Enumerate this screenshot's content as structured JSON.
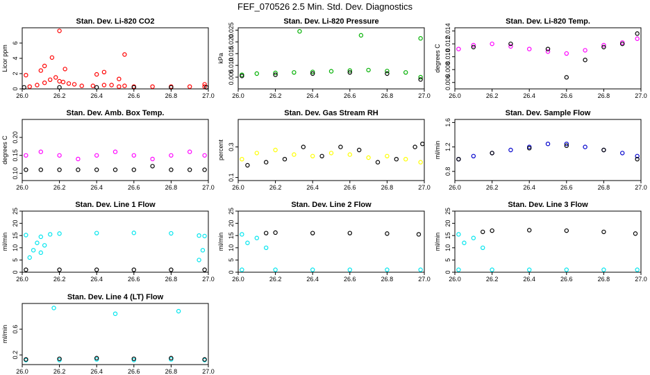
{
  "figure": {
    "title": "FEF_070526  2.5 Min. Std. Dev. Diagnostics"
  },
  "chart_data": [
    {
      "id": "li820-co2",
      "type": "scatter",
      "title": "Stan. Dev. Li-820 CO2",
      "ylabel": "Licor ppm",
      "xlim": [
        26.0,
        27.0
      ],
      "ylim": [
        0,
        8
      ],
      "x_ticks": [
        "26.0",
        "26.2",
        "26.4",
        "26.6",
        "26.8",
        "27.0"
      ],
      "y_ticks": [
        "0",
        "2",
        "4",
        "6"
      ],
      "series": [
        {
          "name": "dense",
          "color": "#ff0000",
          "x": [
            26.04,
            26.08,
            26.12,
            26.15,
            26.18,
            26.2,
            26.22,
            26.25,
            26.28,
            26.32,
            26.38,
            26.44,
            26.48,
            26.52,
            26.55,
            26.6,
            26.7,
            26.8,
            26.9,
            26.98
          ],
          "y": [
            0.3,
            0.5,
            0.8,
            1.2,
            1.5,
            1.0,
            0.9,
            0.7,
            0.6,
            0.4,
            0.4,
            0.5,
            0.5,
            0.3,
            0.4,
            0.3,
            0.3,
            0.3,
            0.3,
            0.3
          ]
        },
        {
          "name": "outliers",
          "color": "#ff0000",
          "x": [
            26.02,
            26.1,
            26.12,
            26.16,
            26.2,
            26.23,
            26.4,
            26.44,
            26.52,
            26.55,
            26.98
          ],
          "y": [
            1.8,
            2.4,
            3.0,
            4.1,
            7.6,
            2.6,
            1.9,
            2.2,
            1.3,
            4.5,
            0.6
          ]
        },
        {
          "name": "reference",
          "color": "#000000",
          "x": [
            26.01,
            26.2,
            26.4,
            26.6,
            26.8,
            26.99
          ],
          "y": [
            0.2,
            0.2,
            0.2,
            0.2,
            0.2,
            0.2
          ]
        }
      ]
    },
    {
      "id": "li820-pressure",
      "type": "scatter",
      "title": "Stan. Dev. Li-820 Pressure",
      "ylabel": "kPa",
      "xlim": [
        26.0,
        27.0
      ],
      "ylim": [
        0.0,
        0.026
      ],
      "x_ticks": [
        "26.0",
        "26.2",
        "26.4",
        "26.6",
        "26.8",
        "27.0"
      ],
      "y_ticks": [
        "0.005",
        "0.010",
        "0.015",
        "0.020",
        "0.025"
      ],
      "series": [
        {
          "name": "primary",
          "color": "#00b000",
          "x": [
            26.02,
            26.1,
            26.2,
            26.3,
            26.4,
            26.5,
            26.6,
            26.7,
            26.8,
            26.9,
            26.98
          ],
          "y": [
            0.006,
            0.0065,
            0.0068,
            0.007,
            0.0072,
            0.0075,
            0.0078,
            0.008,
            0.0076,
            0.007,
            0.005
          ]
        },
        {
          "name": "outliers",
          "color": "#00b000",
          "x": [
            26.33,
            26.66,
            26.98
          ],
          "y": [
            0.0245,
            0.0228,
            0.0215
          ]
        },
        {
          "name": "reference",
          "color": "#000000",
          "x": [
            26.02,
            26.2,
            26.4,
            26.6,
            26.8,
            26.98
          ],
          "y": [
            0.0055,
            0.006,
            0.0065,
            0.007,
            0.0065,
            0.004
          ]
        }
      ]
    },
    {
      "id": "li820-temp",
      "type": "scatter",
      "title": "Stan. Dev. Li-820 Temp.",
      "ylabel": "degrees C",
      "xlim": [
        26.0,
        27.0
      ],
      "ylim": [
        0.005,
        0.0145
      ],
      "x_ticks": [
        "26.0",
        "26.2",
        "26.4",
        "26.6",
        "26.8",
        "27.0"
      ],
      "y_ticks": [
        "0.006",
        "0.008",
        "0.010",
        "0.012",
        "0.014"
      ],
      "series": [
        {
          "name": "primary",
          "color": "#ff00ff",
          "x": [
            26.02,
            26.1,
            26.2,
            26.3,
            26.4,
            26.5,
            26.6,
            26.7,
            26.8,
            26.9,
            26.98
          ],
          "y": [
            0.0112,
            0.0118,
            0.012,
            0.0116,
            0.0112,
            0.0108,
            0.0105,
            0.011,
            0.0118,
            0.0122,
            0.0128
          ]
        },
        {
          "name": "reference",
          "color": "#000000",
          "x": [
            26.1,
            26.3,
            26.5,
            26.6,
            26.7,
            26.8,
            26.9,
            26.98
          ],
          "y": [
            0.0115,
            0.012,
            0.0112,
            0.0068,
            0.0095,
            0.0115,
            0.012,
            0.0136
          ]
        }
      ]
    },
    {
      "id": "amb-box-temp",
      "type": "scatter",
      "title": "Stan. Dev. Amb. Box Temp.",
      "ylabel": "degrees C",
      "xlim": [
        26.0,
        27.0
      ],
      "ylim": [
        0.08,
        0.25
      ],
      "x_ticks": [
        "26.0",
        "26.2",
        "26.4",
        "26.6",
        "26.8",
        "27.0"
      ],
      "y_ticks": [
        "0.10",
        "0.15",
        "0.20"
      ],
      "series": [
        {
          "name": "primary",
          "color": "#ff00ff",
          "x": [
            26.02,
            26.1,
            26.2,
            26.3,
            26.4,
            26.5,
            26.6,
            26.7,
            26.8,
            26.9,
            26.98
          ],
          "y": [
            0.15,
            0.16,
            0.15,
            0.14,
            0.15,
            0.16,
            0.15,
            0.14,
            0.15,
            0.16,
            0.15
          ]
        },
        {
          "name": "reference",
          "color": "#000000",
          "x": [
            26.02,
            26.1,
            26.2,
            26.3,
            26.4,
            26.5,
            26.6,
            26.7,
            26.8,
            26.9,
            26.98
          ],
          "y": [
            0.11,
            0.11,
            0.11,
            0.11,
            0.11,
            0.11,
            0.11,
            0.12,
            0.11,
            0.11,
            0.11
          ]
        }
      ]
    },
    {
      "id": "gas-stream-rh",
      "type": "scatter",
      "title": "Stan. Dev. Gas Stream RH",
      "ylabel": "percent",
      "xlim": [
        26.0,
        27.0
      ],
      "ylim": [
        0.08,
        0.48
      ],
      "x_ticks": [
        "26.0",
        "26.2",
        "26.4",
        "26.6",
        "26.8",
        "27.0"
      ],
      "y_ticks": [
        "0.1",
        "0.3"
      ],
      "series": [
        {
          "name": "primary",
          "color": "#ffff00",
          "x": [
            26.02,
            26.1,
            26.2,
            26.3,
            26.4,
            26.5,
            26.6,
            26.7,
            26.8,
            26.9,
            26.98
          ],
          "y": [
            0.22,
            0.26,
            0.28,
            0.25,
            0.24,
            0.26,
            0.25,
            0.23,
            0.24,
            0.22,
            0.2
          ]
        },
        {
          "name": "reference",
          "color": "#000000",
          "x": [
            26.05,
            26.15,
            26.25,
            26.35,
            26.45,
            26.55,
            26.65,
            26.75,
            26.85,
            26.95,
            26.99
          ],
          "y": [
            0.18,
            0.2,
            0.22,
            0.3,
            0.24,
            0.3,
            0.28,
            0.2,
            0.22,
            0.3,
            0.32
          ]
        }
      ]
    },
    {
      "id": "sample-flow",
      "type": "scatter",
      "title": "Stan. Dev. Sample Flow",
      "ylabel": "ml/min",
      "xlim": [
        26.0,
        27.0
      ],
      "ylim": [
        0.65,
        1.65
      ],
      "x_ticks": [
        "26.0",
        "26.2",
        "26.4",
        "26.6",
        "26.8",
        "27.0"
      ],
      "y_ticks": [
        "0.8",
        "1.2",
        "1.6"
      ],
      "series": [
        {
          "name": "primary",
          "color": "#0000cc",
          "x": [
            26.02,
            26.1,
            26.2,
            26.3,
            26.4,
            26.5,
            26.6,
            26.7,
            26.8,
            26.9,
            26.98
          ],
          "y": [
            1.0,
            1.05,
            1.1,
            1.15,
            1.2,
            1.25,
            1.25,
            1.2,
            1.15,
            1.1,
            1.05
          ]
        },
        {
          "name": "reference",
          "color": "#000000",
          "x": [
            26.02,
            26.2,
            26.4,
            26.6,
            26.8,
            26.98
          ],
          "y": [
            1.0,
            1.1,
            1.18,
            1.22,
            1.15,
            1.0
          ]
        }
      ]
    },
    {
      "id": "line1-flow",
      "type": "scatter",
      "title": "Stan. Dev. Line 1 Flow",
      "ylabel": "ml/min",
      "xlim": [
        26.0,
        27.0
      ],
      "ylim": [
        0,
        25
      ],
      "x_ticks": [
        "26.0",
        "26.2",
        "26.4",
        "26.6",
        "26.8",
        "27.0"
      ],
      "y_ticks": [
        "0",
        "5",
        "10",
        "15",
        "20",
        "25"
      ],
      "series": [
        {
          "name": "upper",
          "color": "#00e5ee",
          "x": [
            26.02,
            26.1,
            26.15,
            26.2,
            26.4,
            26.6,
            26.8,
            26.95,
            26.98
          ],
          "y": [
            15.2,
            14.5,
            15.5,
            15.8,
            16.0,
            16.1,
            15.9,
            15.0,
            14.8
          ]
        },
        {
          "name": "transients",
          "color": "#00e5ee",
          "x": [
            26.04,
            26.06,
            26.08,
            26.1,
            26.12,
            26.95,
            26.97
          ],
          "y": [
            6,
            9,
            12,
            8,
            11,
            5,
            9
          ]
        },
        {
          "name": "reference",
          "color": "#000000",
          "x": [
            26.02,
            26.2,
            26.4,
            26.6,
            26.8,
            26.98
          ],
          "y": [
            1.0,
            1.0,
            1.0,
            1.0,
            1.0,
            1.0
          ]
        }
      ]
    },
    {
      "id": "line2-flow",
      "type": "scatter",
      "title": "Stan. Dev. Line 2 Flow",
      "ylabel": "ml/min",
      "xlim": [
        26.0,
        27.0
      ],
      "ylim": [
        0,
        25
      ],
      "x_ticks": [
        "26.0",
        "26.2",
        "26.4",
        "26.6",
        "26.8",
        "27.0"
      ],
      "y_ticks": [
        "0",
        "5",
        "10",
        "15",
        "20",
        "25"
      ],
      "series": [
        {
          "name": "lower",
          "color": "#00e5ee",
          "x": [
            26.02,
            26.2,
            26.4,
            26.6,
            26.8,
            26.98
          ],
          "y": [
            1.0,
            1.0,
            1.0,
            1.0,
            1.0,
            1.0
          ]
        },
        {
          "name": "upper",
          "color": "#00e5ee",
          "x": [
            26.02,
            26.05,
            26.1,
            26.15
          ],
          "y": [
            15.5,
            12,
            14,
            10
          ]
        },
        {
          "name": "reference",
          "color": "#000000",
          "x": [
            26.15,
            26.2,
            26.4,
            26.6,
            26.8,
            26.97
          ],
          "y": [
            16.0,
            16.2,
            16.0,
            16.0,
            15.8,
            15.5
          ]
        }
      ]
    },
    {
      "id": "line3-flow",
      "type": "scatter",
      "title": "Stan. Dev. Line 3 Flow",
      "ylabel": "ml/min",
      "xlim": [
        26.0,
        27.0
      ],
      "ylim": [
        0,
        25
      ],
      "x_ticks": [
        "26.0",
        "26.2",
        "26.4",
        "26.6",
        "26.8",
        "27.0"
      ],
      "y_ticks": [
        "0",
        "5",
        "10",
        "15",
        "20",
        "25"
      ],
      "series": [
        {
          "name": "lower",
          "color": "#00e5ee",
          "x": [
            26.02,
            26.2,
            26.4,
            26.6,
            26.8,
            26.98
          ],
          "y": [
            1.0,
            1.0,
            1.0,
            1.0,
            1.0,
            1.0
          ]
        },
        {
          "name": "upper",
          "color": "#00e5ee",
          "x": [
            26.02,
            26.05,
            26.1,
            26.15
          ],
          "y": [
            15.5,
            12,
            14,
            10
          ]
        },
        {
          "name": "reference",
          "color": "#000000",
          "x": [
            26.15,
            26.2,
            26.4,
            26.6,
            26.8,
            26.97
          ],
          "y": [
            16.5,
            17.0,
            17.2,
            17.0,
            16.5,
            15.8
          ]
        }
      ]
    },
    {
      "id": "line4-lt-flow",
      "type": "scatter",
      "title": "Stan. Dev. Line 4 (LT) Flow",
      "ylabel": "ml/min",
      "xlim": [
        26.0,
        27.0
      ],
      "ylim": [
        0.05,
        1.0
      ],
      "x_ticks": [
        "26.0",
        "26.2",
        "26.4",
        "26.6",
        "26.8",
        "27.0"
      ],
      "y_ticks": [
        "0.2",
        "0.6"
      ],
      "series": [
        {
          "name": "primary",
          "color": "#00e5ee",
          "x": [
            26.02,
            26.2,
            26.4,
            26.6,
            26.8,
            26.98
          ],
          "y": [
            0.12,
            0.12,
            0.13,
            0.12,
            0.13,
            0.12
          ]
        },
        {
          "name": "outliers",
          "color": "#00e5ee",
          "x": [
            26.17,
            26.5,
            26.84
          ],
          "y": [
            0.93,
            0.84,
            0.88
          ]
        },
        {
          "name": "reference",
          "color": "#000000",
          "x": [
            26.02,
            26.2,
            26.4,
            26.6,
            26.8,
            26.98
          ],
          "y": [
            0.13,
            0.14,
            0.15,
            0.14,
            0.15,
            0.13
          ]
        }
      ]
    }
  ]
}
